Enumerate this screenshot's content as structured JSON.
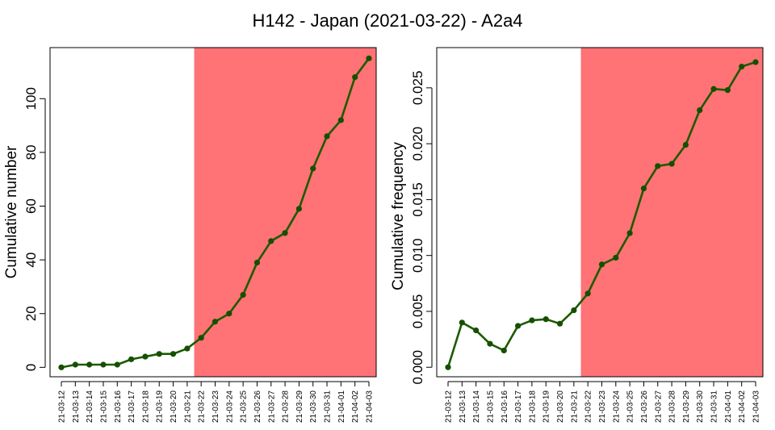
{
  "figure": {
    "title": "H142 - Japan (2021-03-22) - A2a4",
    "highlight_color": "#ff7276",
    "line_color": "#1d5a00",
    "marker_color": "#145000"
  },
  "chart_data": [
    {
      "type": "line",
      "ylabel": "Cumulative number",
      "xlabel": "",
      "categories": [
        "21-03-12",
        "21-03-13",
        "21-03-14",
        "21-03-15",
        "21-03-16",
        "21-03-17",
        "21-03-18",
        "21-03-19",
        "21-03-20",
        "21-03-21",
        "21-03-22",
        "21-03-23",
        "21-03-24",
        "21-03-25",
        "21-03-26",
        "21-03-27",
        "21-03-28",
        "21-03-29",
        "21-03-30",
        "21-03-31",
        "21-04-01",
        "21-04-02",
        "21-04-03"
      ],
      "values": [
        0,
        1,
        1,
        1,
        1,
        3,
        4,
        5,
        5,
        7,
        11,
        17,
        20,
        27,
        39,
        47,
        50,
        59,
        74,
        86,
        92,
        108,
        115
      ],
      "ylim": [
        -3.5,
        119
      ],
      "yticks": [
        {
          "value": 0,
          "label": "0"
        },
        {
          "value": 20,
          "label": "20"
        },
        {
          "value": 40,
          "label": "40"
        },
        {
          "value": 60,
          "label": "60"
        },
        {
          "value": 80,
          "label": "80"
        },
        {
          "value": 100,
          "label": "100"
        }
      ],
      "highlight_from": "21-03-22",
      "grid": false
    },
    {
      "type": "line",
      "ylabel": "Cumulative frequency",
      "xlabel": "",
      "categories": [
        "21-03-12",
        "21-03-13",
        "21-03-14",
        "21-03-15",
        "21-03-16",
        "21-03-17",
        "21-03-18",
        "21-03-19",
        "21-03-20",
        "21-03-21",
        "21-03-22",
        "21-03-23",
        "21-03-24",
        "21-03-25",
        "21-03-26",
        "21-03-27",
        "21-03-28",
        "21-03-29",
        "21-03-30",
        "21-03-31",
        "21-04-01",
        "21-04-02",
        "21-04-03"
      ],
      "values": [
        0.0,
        0.004,
        0.0033,
        0.0021,
        0.0015,
        0.0037,
        0.0042,
        0.0043,
        0.0039,
        0.0051,
        0.0066,
        0.0092,
        0.0098,
        0.012,
        0.016,
        0.018,
        0.0182,
        0.0199,
        0.023,
        0.0249,
        0.0248,
        0.0269,
        0.0273
      ],
      "ylim": [
        -0.00085,
        0.0286
      ],
      "yticks": [
        {
          "value": 0.0,
          "label": "0.000"
        },
        {
          "value": 0.005,
          "label": "0.005"
        },
        {
          "value": 0.01,
          "label": "0.010"
        },
        {
          "value": 0.015,
          "label": "0.015"
        },
        {
          "value": 0.02,
          "label": "0.020"
        },
        {
          "value": 0.025,
          "label": "0.025"
        }
      ],
      "highlight_from": "21-03-22",
      "grid": false
    }
  ]
}
